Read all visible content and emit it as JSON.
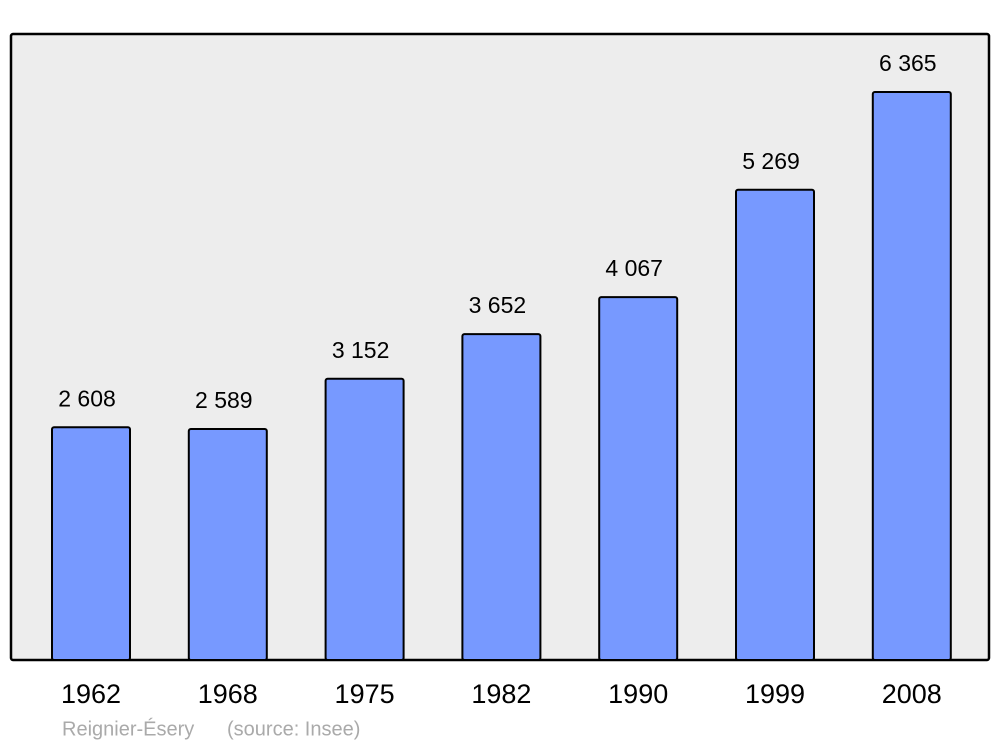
{
  "chart_data": {
    "type": "bar",
    "categories": [
      "1962",
      "1968",
      "1975",
      "1982",
      "1990",
      "1999",
      "2008"
    ],
    "values": [
      2608,
      2589,
      3152,
      3652,
      4067,
      5269,
      6365
    ],
    "value_labels": [
      "2 608",
      "2 589",
      "3 152",
      "3 652",
      "4 067",
      "5 269",
      "6 365"
    ],
    "color": "#7799ff",
    "caption": "Reignier-Ésery",
    "source": "(source: Insee)"
  }
}
